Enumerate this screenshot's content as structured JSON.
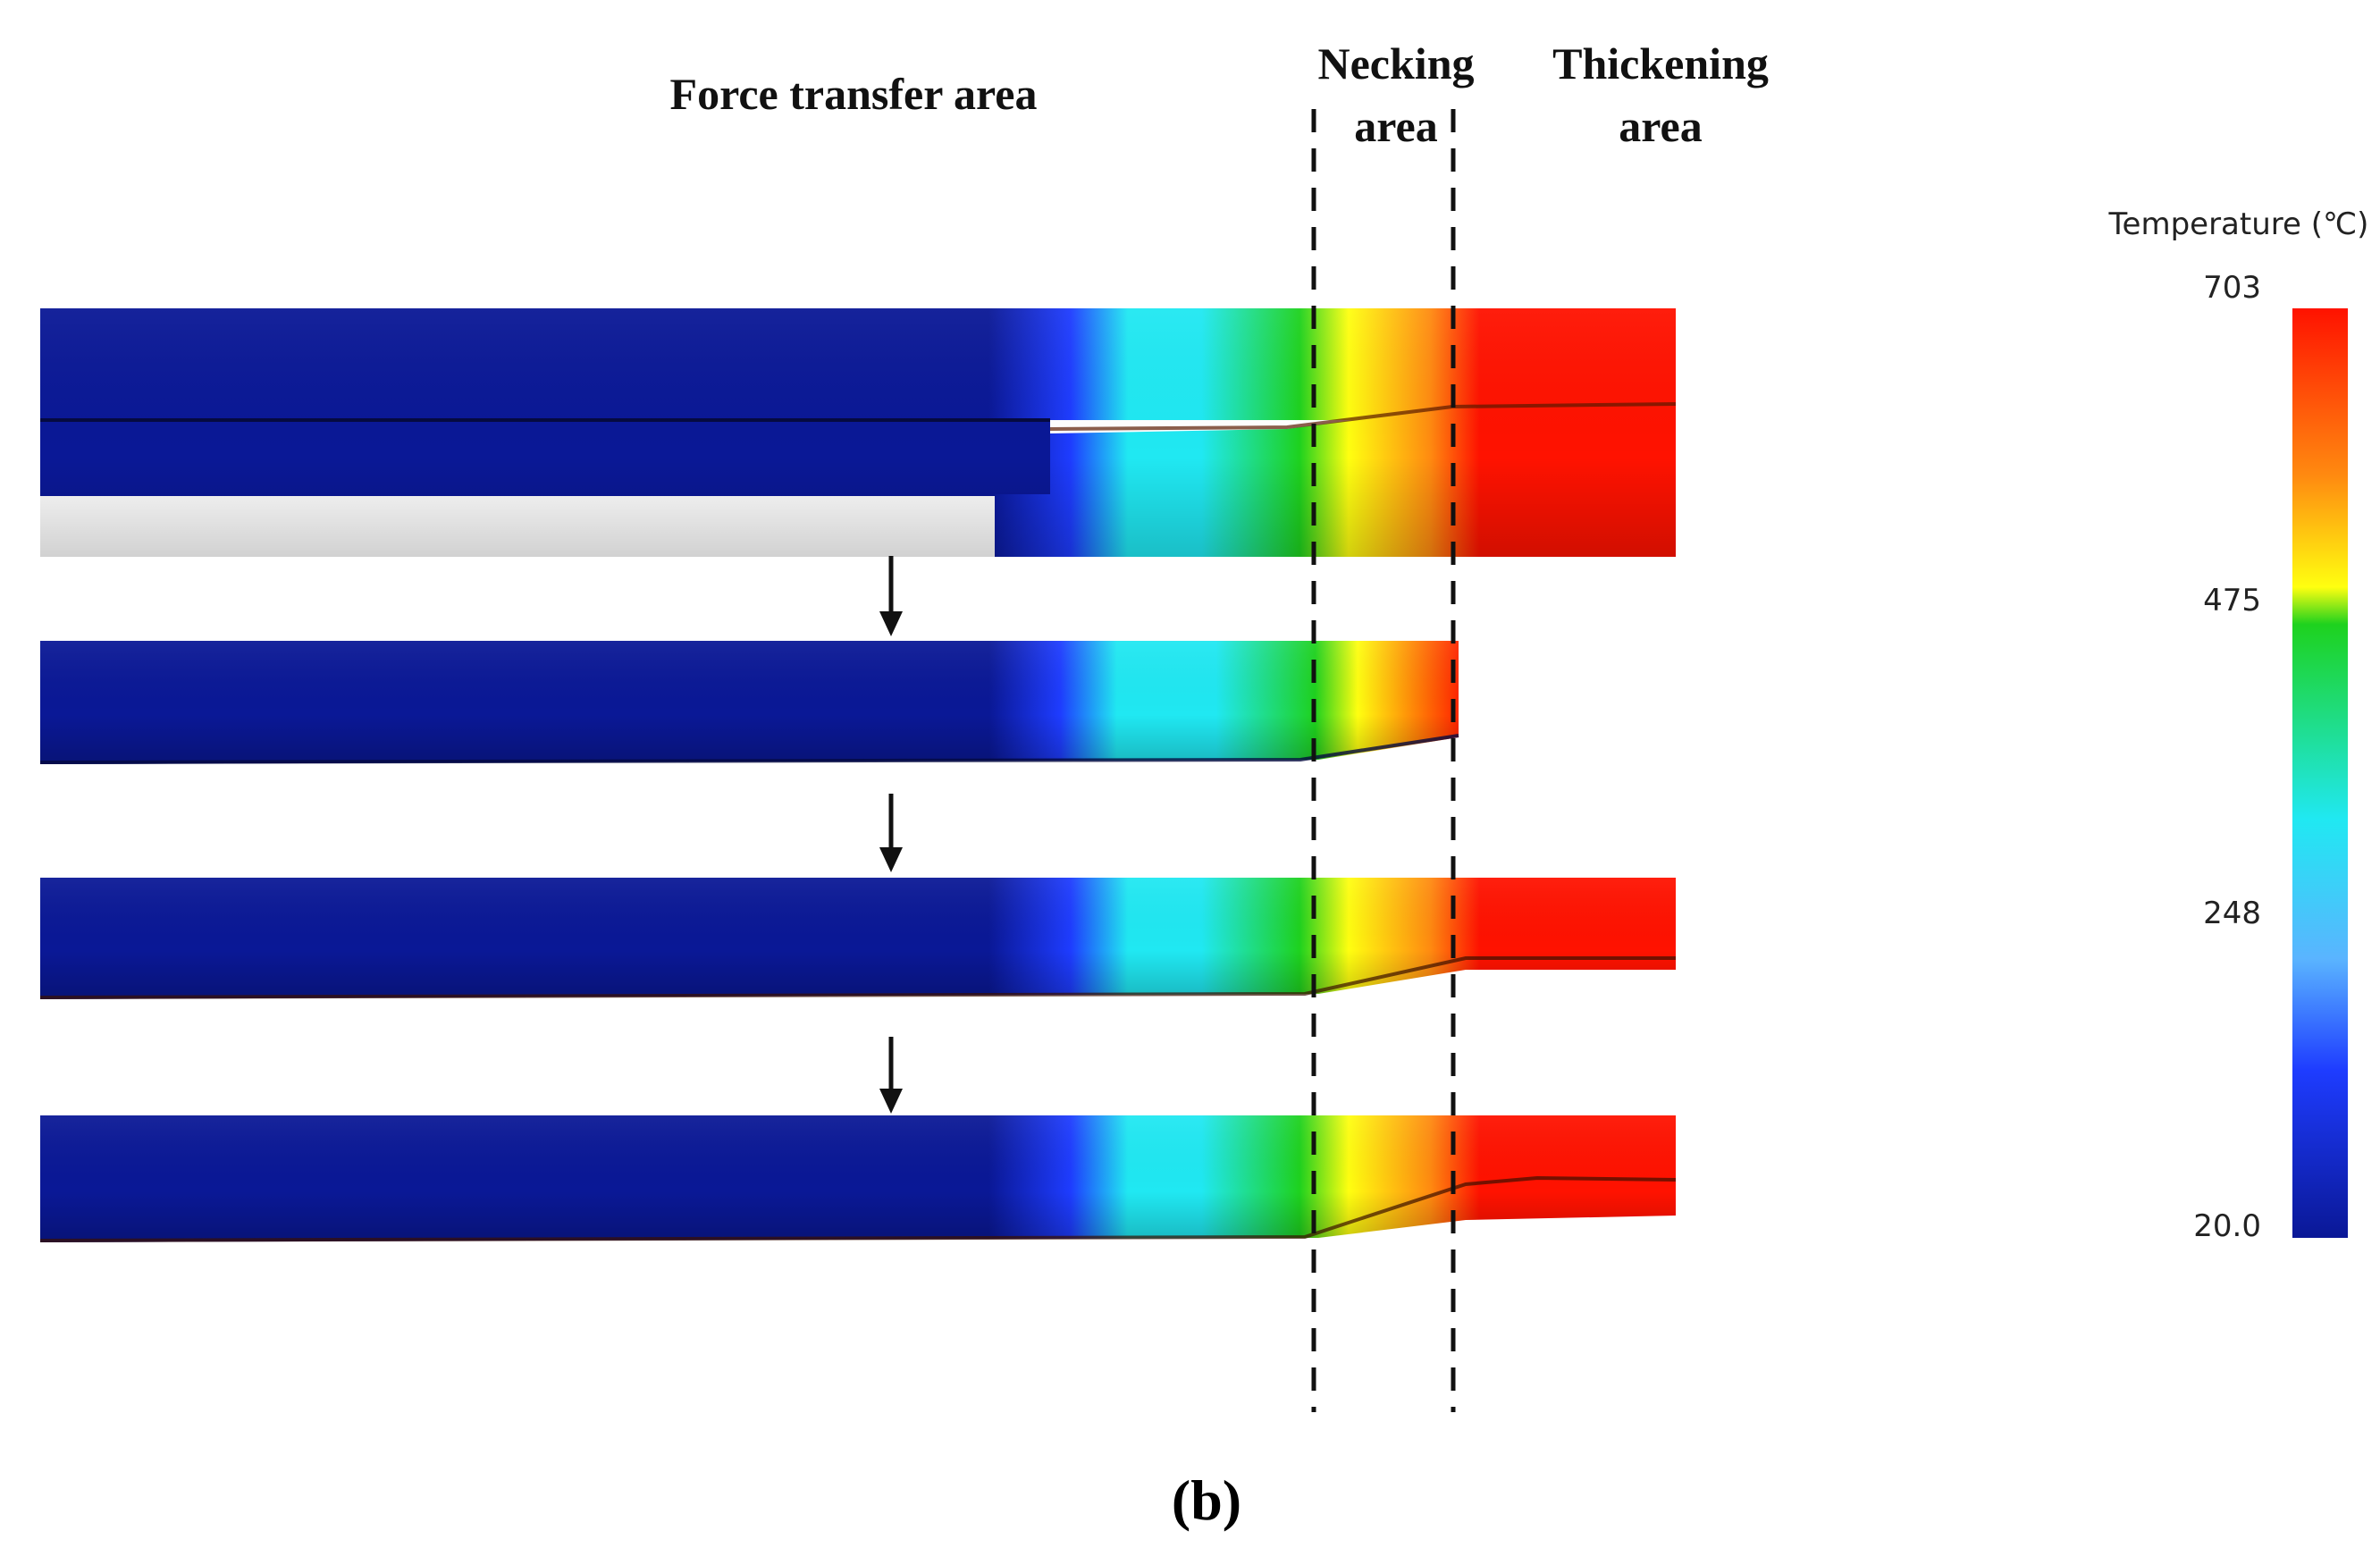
{
  "labels": {
    "force_transfer": "Force transfer area",
    "necking_line1": "Necking",
    "necking_line2": "area",
    "thickening_line1": "Thickening",
    "thickening_line2": "area",
    "caption": "(b)"
  },
  "legend": {
    "title": "Temperature (℃)",
    "ticks": [
      "703",
      "475",
      "248",
      "20.0"
    ],
    "max": 703,
    "min": 20.0
  },
  "colors": {
    "cold": "#0a1896",
    "cool": "#1e3cff",
    "cyan": "#20e8f2",
    "green": "#1ed21e",
    "yellow": "#ffff10",
    "orange": "#ff8a10",
    "hot": "#ff1200",
    "line": "#111111"
  },
  "arrow_count": 3
}
